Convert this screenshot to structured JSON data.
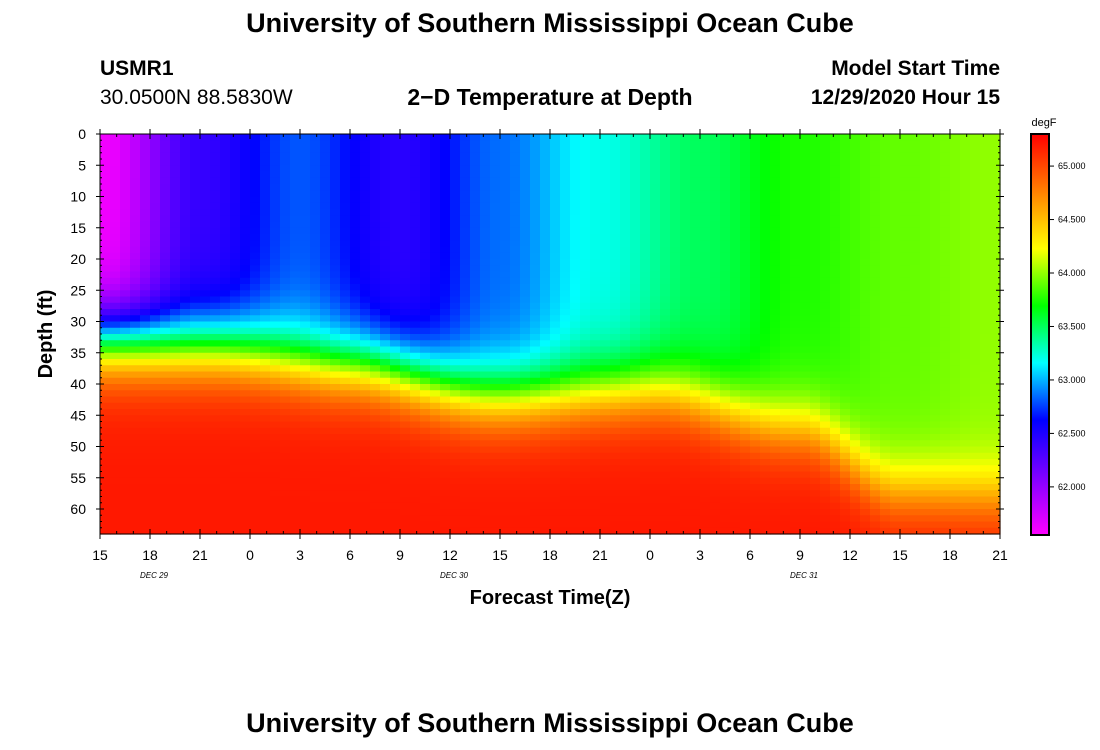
{
  "page": {
    "title": "University of Southern Mississippi Ocean Cube",
    "footer_title": "University of Southern Mississippi Ocean Cube"
  },
  "header": {
    "station_id": "USMR1",
    "coordinates": "30.0500N 88.5830W",
    "chart_title": "2−D Temperature at Depth",
    "model_start_label": "Model Start Time",
    "model_start_value": "12/29/2020 Hour 15"
  },
  "chart_data": {
    "type": "heatmap",
    "title": "2−D Temperature at Depth",
    "xlabel": "Forecast Time(Z)",
    "ylabel": "Depth (ft)",
    "x_ticks": [
      "15",
      "18",
      "21",
      "0",
      "3",
      "6",
      "9",
      "12",
      "15",
      "18",
      "21",
      "0",
      "3",
      "6",
      "9",
      "12",
      "15",
      "18",
      "21"
    ],
    "x_date_labels": [
      {
        "label": "DEC  29",
        "tick_index": 1
      },
      {
        "label": "DEC  30",
        "tick_index": 7
      },
      {
        "label": "DEC  31",
        "tick_index": 14
      }
    ],
    "y_ticks": [
      0,
      5,
      10,
      15,
      20,
      25,
      30,
      35,
      40,
      45,
      50,
      55,
      60
    ],
    "ylim": [
      0,
      64
    ],
    "hours_range": [
      0,
      54
    ],
    "colorbar": {
      "unit": "degF",
      "min": 61.55,
      "max": 65.3,
      "ticks": [
        "62.000",
        "62.500",
        "63.000",
        "63.500",
        "64.000",
        "64.500",
        "65.000"
      ],
      "colors": [
        "#ff00ff",
        "#8000ff",
        "#0000ff",
        "#00ffff",
        "#00ff00",
        "#ffff00",
        "#ff8000",
        "#ff0000"
      ]
    },
    "thermocline_depth_ft": [
      {
        "hour": 0,
        "depth": 33
      },
      {
        "hour": 6,
        "depth": 34
      },
      {
        "hour": 15,
        "depth": 37
      },
      {
        "hour": 24,
        "depth": 42
      },
      {
        "hour": 33,
        "depth": 41
      },
      {
        "hour": 42,
        "depth": 47
      },
      {
        "hour": 48,
        "depth": 57
      },
      {
        "hour": 54,
        "depth": 58
      }
    ],
    "surface_temp_degF": [
      {
        "hour": 0,
        "value": 61.6
      },
      {
        "hour": 6,
        "value": 62.4
      },
      {
        "hour": 12,
        "value": 62.8
      },
      {
        "hour": 18,
        "value": 62.45
      },
      {
        "hour": 24,
        "value": 62.85
      },
      {
        "hour": 30,
        "value": 63.2
      },
      {
        "hour": 36,
        "value": 63.5
      },
      {
        "hour": 42,
        "value": 63.75
      },
      {
        "hour": 48,
        "value": 63.9
      },
      {
        "hour": 54,
        "value": 64.0
      }
    ],
    "bottom_temp_degF": 65.2
  }
}
